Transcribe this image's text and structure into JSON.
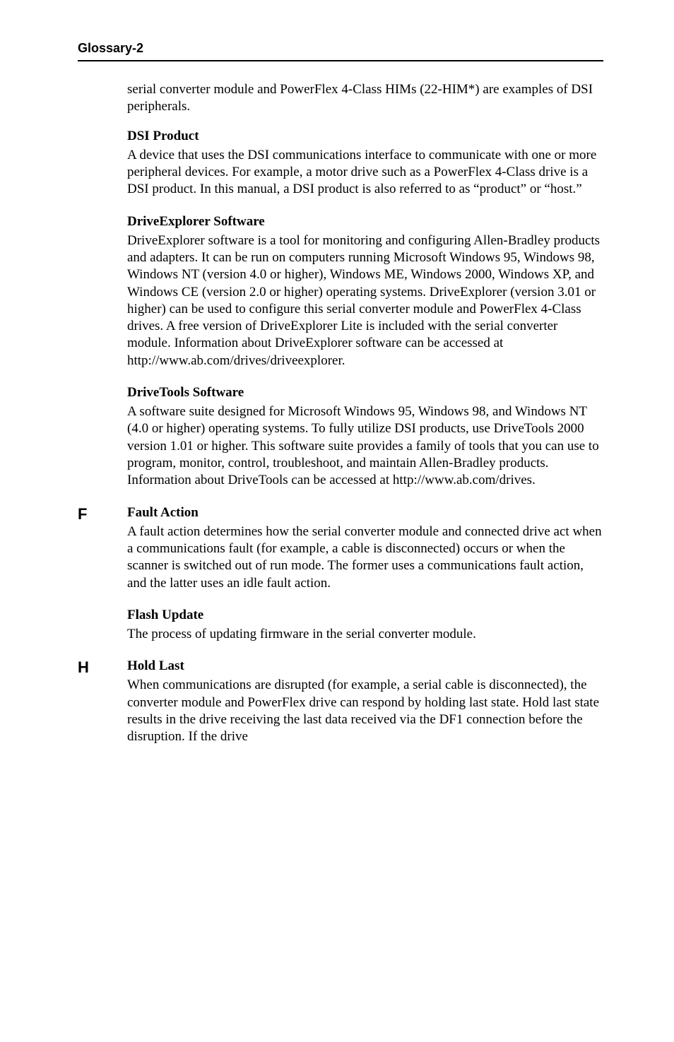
{
  "colors": {
    "text": "#000000",
    "background": "#ffffff",
    "rule": "#000000"
  },
  "typography": {
    "body_family": "Times New Roman",
    "body_size_pt": 14,
    "header_family": "Arial",
    "header_weight": 700,
    "section_letter_family": "Arial",
    "section_letter_weight": 700
  },
  "header": {
    "title": "Glossary-2"
  },
  "intro_para": "serial converter module and PowerFlex 4-Class HIMs (22-HIM*) are examples of DSI peripherals.",
  "entries": [
    {
      "letter": null,
      "term": "DSI Product",
      "body": "A device that uses the DSI communications interface to communicate with one or more peripheral devices. For example, a motor drive such as a PowerFlex 4-Class drive is a DSI product. In this manual, a DSI product is also referred to as “product” or “host.”"
    },
    {
      "letter": null,
      "term": "DriveExplorer Software",
      "body": "DriveExplorer software is a tool for monitoring and configuring Allen-Bradley products and adapters. It can be run on computers running Microsoft Windows 95, Windows 98, Windows NT (version 4.0 or higher), Windows ME, Windows 2000, Windows XP, and Windows CE (version 2.0 or higher) operating systems. DriveExplorer (version 3.01 or higher) can be used to configure this serial converter module and PowerFlex 4-Class drives. A free version of DriveExplorer Lite is included with the serial converter module. Information about DriveExplorer software can be accessed at http://www.ab.com/drives/driveexplorer."
    },
    {
      "letter": null,
      "term": "DriveTools Software",
      "body": "A software suite designed for Microsoft Windows 95, Windows 98, and Windows NT (4.0 or higher) operating systems. To fully utilize DSI products, use DriveTools 2000 version 1.01 or higher. This software suite provides a family of tools that you can use to program, monitor, control, troubleshoot, and maintain Allen-Bradley products. Information about DriveTools can be accessed at http://www.ab.com/drives."
    },
    {
      "letter": "F",
      "term": "Fault Action",
      "body": "A fault action determines how the serial converter module and connected drive act when a communications fault (for example, a cable is disconnected) occurs or when the scanner is switched out of run mode. The former uses a communications fault action, and the latter uses an idle fault action."
    },
    {
      "letter": null,
      "term": "Flash Update",
      "body": "The process of updating firmware in the serial converter module."
    },
    {
      "letter": "H",
      "term": "Hold Last",
      "body": "When communications are disrupted (for example, a serial cable is disconnected), the converter module and PowerFlex drive can respond by holding last state. Hold last state results in the drive receiving the last data received via the DF1 connection before the disruption. If the drive"
    }
  ]
}
